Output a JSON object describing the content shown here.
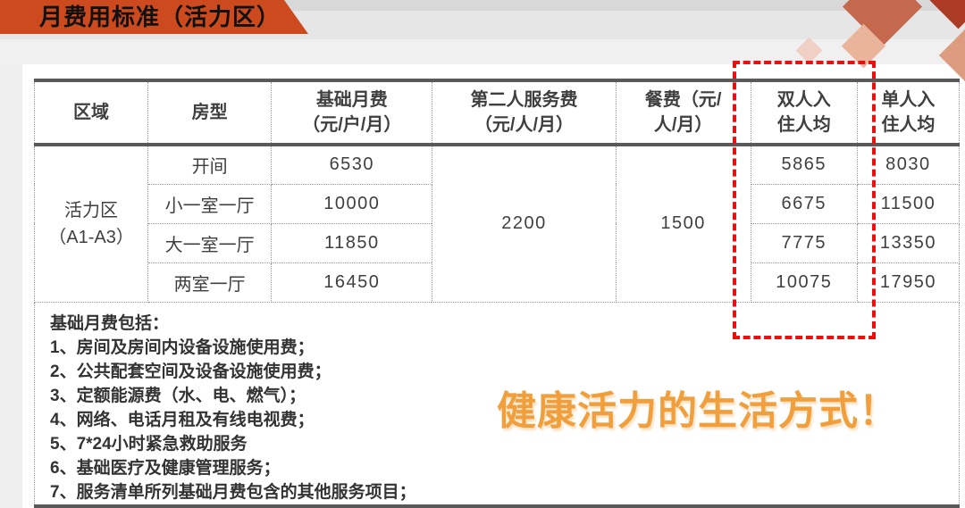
{
  "banner": {
    "title": "月费用标准（活力区）"
  },
  "table": {
    "headers": [
      "区域",
      "房型",
      "基础月费\n（元/户/月）",
      "第二人服务费\n（元/人/月）",
      "餐费（元/\n人/月）",
      "双人入\n住人均",
      "单人入\n住人均"
    ],
    "region": "活力区\n（A1-A3）",
    "second_person_fee": "2200",
    "meal_fee": "1500",
    "rows": [
      {
        "room": "开间",
        "base": "6530",
        "double_pp": "5865",
        "single_pp": "8030"
      },
      {
        "room": "小一室一厅",
        "base": "10000",
        "double_pp": "6675",
        "single_pp": "11500"
      },
      {
        "room": "大一室一厅",
        "base": "11850",
        "double_pp": "7775",
        "single_pp": "13350"
      },
      {
        "room": "两室一厅",
        "base": "16450",
        "double_pp": "10075",
        "single_pp": "17950"
      }
    ]
  },
  "notes": {
    "title": "基础月费包括：",
    "items": [
      "1、房间及房间内设备设施使用费；",
      "2、公共配套空间及设备设施使用费；",
      "3、定额能源费（水、电、燃气）；",
      "4、网络、电话月租及有线电视费；",
      "5、7*24小时紧急救助服务",
      "6、基础医疗及健康管理服务；",
      "7、服务清单所列基础月费包含的其他服务项目；"
    ]
  },
  "slogan": "健康活力的生活方式！",
  "colors": {
    "page_bg": "#EFEFEF",
    "band1": "#D8D8D8",
    "band2": "#E6E6E6",
    "band3": "#F0F0F0",
    "panel_bg": "#FFFFFF",
    "banner_bg": "#CC4A1D",
    "border_dark": "#595959",
    "border_dot": "#999999",
    "text": "#3F3F3F",
    "note_text": "#333333",
    "red": "#EA1010",
    "slogan": "#F19F3D",
    "d_big": "#C4684E",
    "d_corner": "#AC3B25",
    "d_small": "#F0CFC4",
    "d_mid": "#EAB49A",
    "d_right": "#DD9C7F"
  }
}
